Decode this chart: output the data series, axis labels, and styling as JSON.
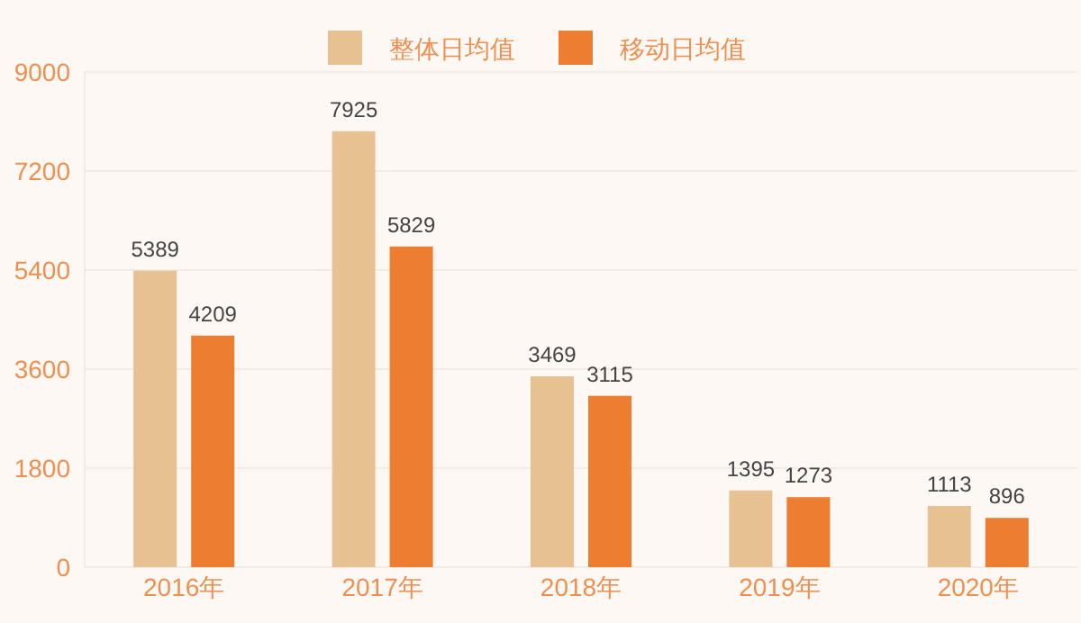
{
  "chart_data": {
    "type": "bar",
    "categories": [
      "2016年",
      "2017年",
      "2018年",
      "2019年",
      "2020年"
    ],
    "series": [
      {
        "name": "整体日均值",
        "color": "#e8c193",
        "values": [
          5389,
          7925,
          3469,
          1395,
          1113
        ]
      },
      {
        "name": "移动日均值",
        "color": "#ec7d31",
        "values": [
          4209,
          5829,
          3115,
          1273,
          896
        ]
      }
    ],
    "ylim": [
      0,
      9000
    ],
    "yticks": [
      0,
      1800,
      3600,
      5400,
      7200,
      9000
    ],
    "grid": "y",
    "legend": "top",
    "data_labels": true
  }
}
